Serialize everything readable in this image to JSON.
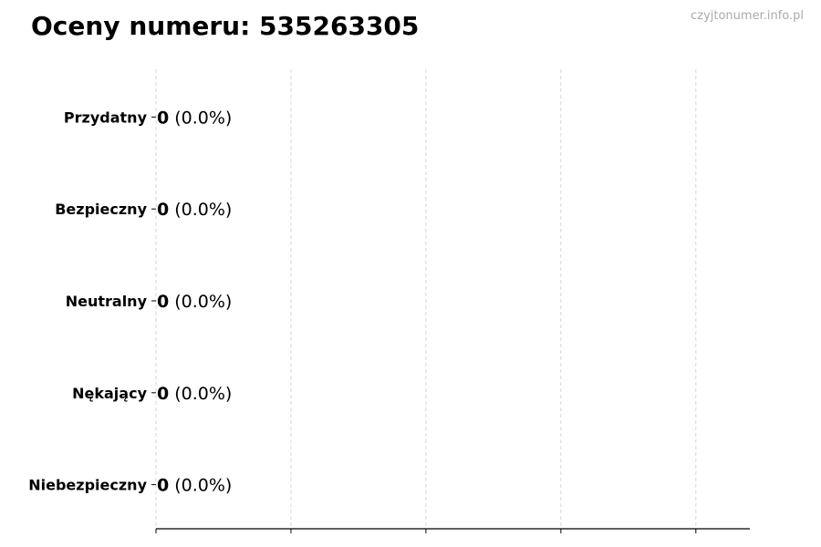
{
  "header": {
    "title": "Oceny numeru: 535263305",
    "watermark": "czyjtonumer.info.pl"
  },
  "chart_data": {
    "type": "bar",
    "orientation": "horizontal",
    "title": "Oceny numeru: 535263305",
    "categories": [
      "Przydatny",
      "Bezpieczny",
      "Neutralny",
      "Nękający",
      "Niebezpieczny"
    ],
    "values": [
      0,
      0,
      0,
      0,
      0
    ],
    "data_labels": [
      {
        "count": "0",
        "pct": "(0.0%)"
      },
      {
        "count": "0",
        "pct": "(0.0%)"
      },
      {
        "count": "0",
        "pct": "(0.0%)"
      },
      {
        "count": "0",
        "pct": "(0.0%)"
      },
      {
        "count": "0",
        "pct": "(0.0%)"
      }
    ],
    "xlim": [
      0,
      4.4
    ],
    "xticks": [
      0,
      1,
      2,
      3,
      4
    ],
    "xtick_labels_shown": false,
    "grid": "x dashed",
    "xlabel": "",
    "ylabel": "",
    "colors": {
      "bar_edge": "#000000",
      "grid": "#cccccc",
      "watermark": "#aaaaaa"
    }
  }
}
